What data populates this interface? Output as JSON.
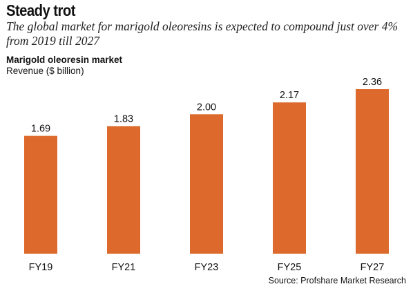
{
  "header": {
    "title": "Steady trot",
    "subtitle": "The global market for marigold oleoresins is expected to compound just over 4% from 2019 till 2027"
  },
  "chart_label": "Marigold oleoresin market",
  "chart_unit": "Revenue ($ billion)",
  "source": "Source: Profshare Market Research",
  "colors": {
    "bar": "#dd6a2c",
    "text": "#111111"
  },
  "chart_data": {
    "type": "bar",
    "title": "Marigold oleoresin market",
    "ylabel": "Revenue ($ billion)",
    "xlabel": "",
    "categories": [
      "FY19",
      "FY21",
      "FY23",
      "FY25",
      "FY27"
    ],
    "values": [
      1.69,
      1.83,
      2.0,
      2.17,
      2.36
    ],
    "value_labels": [
      "1.69",
      "1.83",
      "2.00",
      "2.17",
      "2.36"
    ],
    "ylim": [
      0,
      2.36
    ],
    "grid": false,
    "legend": "none"
  }
}
